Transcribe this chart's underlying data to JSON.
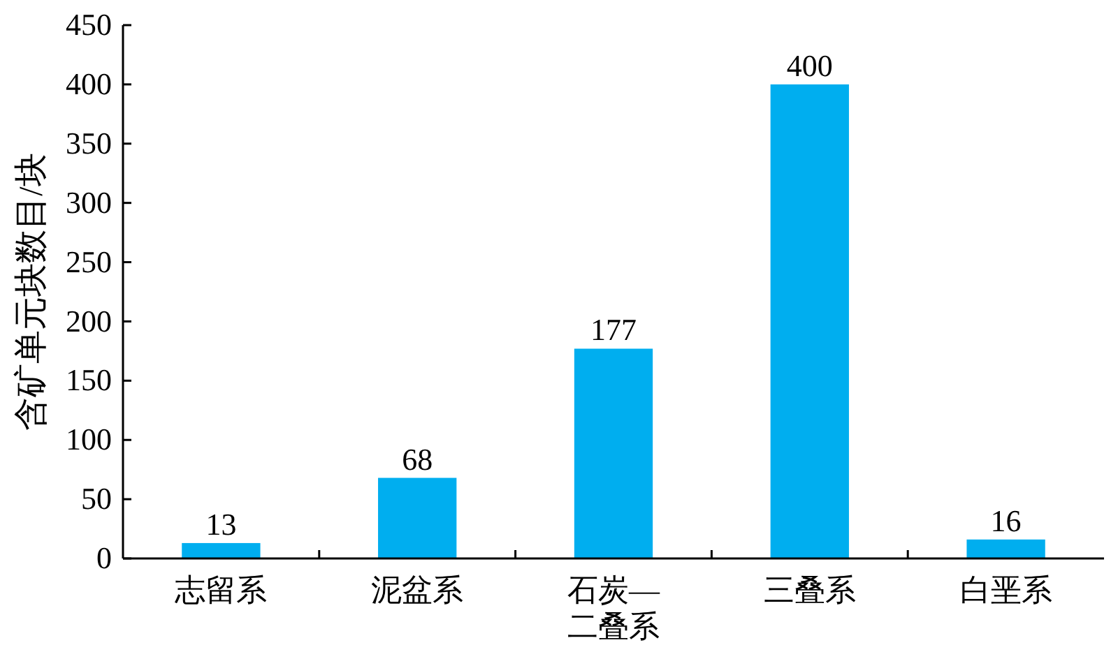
{
  "chart_data": {
    "type": "bar",
    "ylabel": "含矿单元块数目/块",
    "categories": [
      "志留系",
      "泥盆系",
      "石炭—二叠系",
      "三叠系",
      "白垩系"
    ],
    "values": [
      13,
      68,
      177,
      400,
      16
    ],
    "color": "#00aeef",
    "ylim": [
      0,
      450
    ],
    "yticks": [
      0,
      50,
      100,
      150,
      200,
      250,
      300,
      350,
      400,
      450
    ],
    "grid": false,
    "data_labels": true
  }
}
